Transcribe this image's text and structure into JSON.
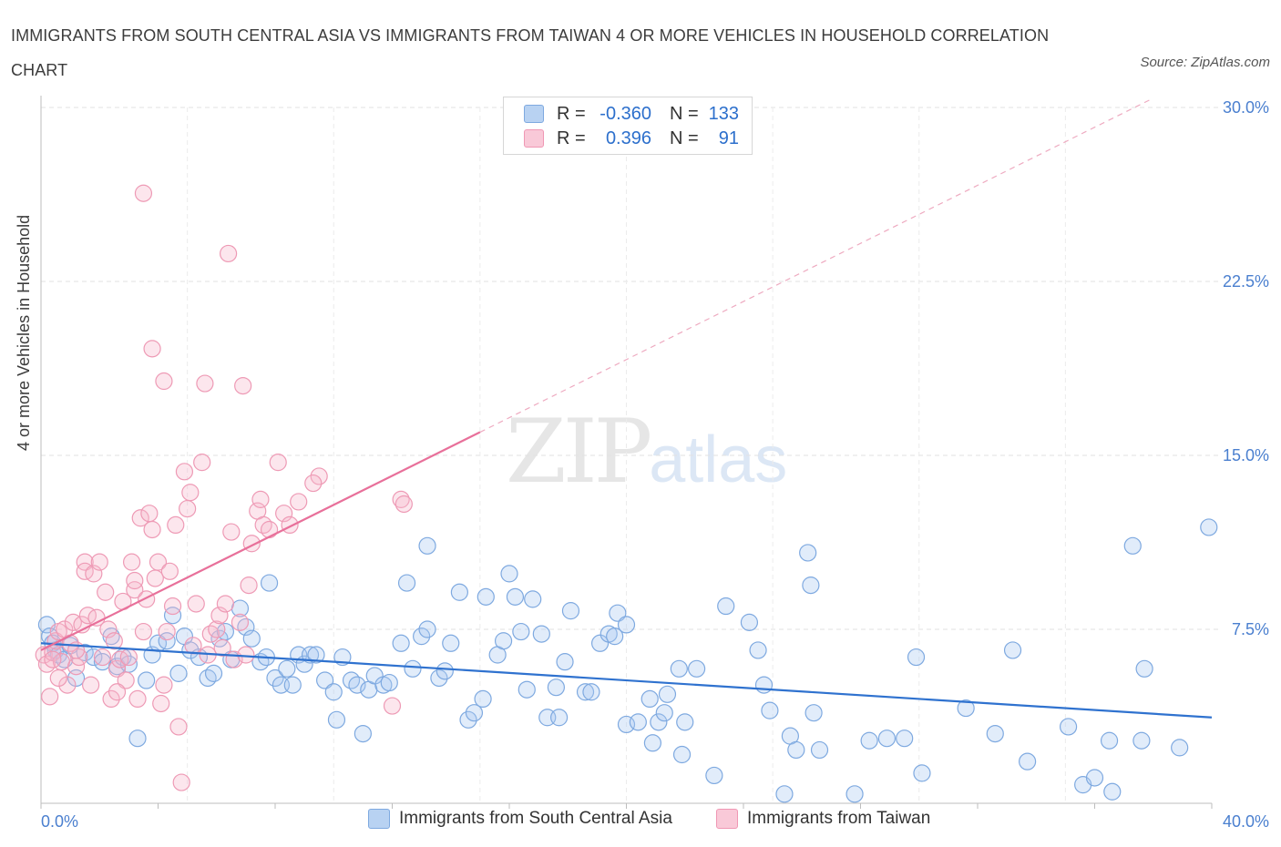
{
  "title": "IMMIGRANTS FROM SOUTH CENTRAL ASIA VS IMMIGRANTS FROM TAIWAN 4 OR MORE VEHICLES IN HOUSEHOLD CORRELATION CHART",
  "source": "Source: ZipAtlas.com",
  "watermark": {
    "zip": "ZIP",
    "atlas": "atlas"
  },
  "legend": {
    "rows": [
      {
        "r_label": "R =",
        "r_value": "-0.360",
        "n_label": "N =",
        "n_value": "133",
        "color": "#a8c8f0"
      },
      {
        "r_label": "R =",
        "r_value": "0.396",
        "n_label": "N =",
        "n_value": "91",
        "color": "#f6b6ca"
      }
    ]
  },
  "chart_data": {
    "type": "scatter",
    "title": "IMMIGRANTS FROM SOUTH CENTRAL ASIA VS IMMIGRANTS FROM TAIWAN 4 OR MORE VEHICLES IN HOUSEHOLD CORRELATION CHART",
    "xlabel": "",
    "ylabel": "4 or more Vehicles in Household",
    "xlim": [
      0,
      40
    ],
    "ylim": [
      0,
      30
    ],
    "x_tick_labels": [
      "0.0%",
      "40.0%"
    ],
    "y_ticks": [
      7.5,
      15.0,
      22.5,
      30.0
    ],
    "y_tick_labels": [
      "7.5%",
      "15.0%",
      "22.5%",
      "30.0%"
    ],
    "grid": true,
    "legend_position": "top-center",
    "series": [
      {
        "name": "Immigrants from South Central Asia",
        "color": "#6aa0e0",
        "trend": {
          "x": [
            0,
            40
          ],
          "y": [
            6.9,
            3.7
          ]
        },
        "points": [
          [
            0.2,
            7.7
          ],
          [
            0.3,
            7.2
          ],
          [
            0.4,
            6.9
          ],
          [
            0.5,
            6.6
          ],
          [
            0.6,
            6.4
          ],
          [
            0.8,
            6.2
          ],
          [
            1.0,
            6.8
          ],
          [
            1.2,
            5.4
          ],
          [
            1.5,
            6.5
          ],
          [
            1.8,
            6.3
          ],
          [
            2.1,
            6.1
          ],
          [
            2.4,
            7.2
          ],
          [
            2.6,
            5.9
          ],
          [
            2.8,
            6.3
          ],
          [
            3.0,
            6.0
          ],
          [
            3.3,
            2.8
          ],
          [
            3.6,
            5.3
          ],
          [
            3.8,
            6.4
          ],
          [
            4.0,
            6.9
          ],
          [
            4.3,
            7.0
          ],
          [
            4.5,
            8.1
          ],
          [
            4.7,
            5.6
          ],
          [
            4.9,
            7.2
          ],
          [
            5.1,
            6.6
          ],
          [
            5.4,
            6.3
          ],
          [
            5.7,
            5.4
          ],
          [
            5.9,
            5.6
          ],
          [
            6.1,
            7.1
          ],
          [
            6.3,
            7.4
          ],
          [
            6.5,
            6.2
          ],
          [
            6.8,
            8.4
          ],
          [
            7.0,
            7.6
          ],
          [
            7.2,
            7.1
          ],
          [
            7.5,
            6.1
          ],
          [
            7.7,
            6.3
          ],
          [
            7.8,
            9.5
          ],
          [
            8.0,
            5.4
          ],
          [
            8.2,
            5.1
          ],
          [
            8.4,
            5.8
          ],
          [
            8.6,
            5.1
          ],
          [
            8.8,
            6.4
          ],
          [
            9.0,
            6.0
          ],
          [
            9.2,
            6.4
          ],
          [
            9.4,
            6.4
          ],
          [
            9.7,
            5.3
          ],
          [
            10.0,
            4.8
          ],
          [
            10.1,
            3.6
          ],
          [
            10.3,
            6.3
          ],
          [
            10.6,
            5.3
          ],
          [
            10.8,
            5.1
          ],
          [
            11.0,
            3.0
          ],
          [
            11.2,
            4.9
          ],
          [
            11.4,
            5.5
          ],
          [
            11.7,
            5.1
          ],
          [
            11.9,
            5.2
          ],
          [
            12.3,
            6.9
          ],
          [
            12.5,
            9.5
          ],
          [
            12.7,
            5.8
          ],
          [
            13.0,
            7.2
          ],
          [
            13.2,
            7.5
          ],
          [
            13.2,
            11.1
          ],
          [
            13.6,
            5.4
          ],
          [
            13.8,
            5.7
          ],
          [
            14.0,
            6.9
          ],
          [
            14.3,
            9.1
          ],
          [
            14.6,
            3.6
          ],
          [
            14.8,
            3.9
          ],
          [
            15.1,
            4.5
          ],
          [
            15.2,
            8.9
          ],
          [
            15.6,
            6.4
          ],
          [
            15.8,
            7.0
          ],
          [
            16.0,
            9.9
          ],
          [
            16.2,
            8.9
          ],
          [
            16.4,
            7.4
          ],
          [
            16.6,
            4.9
          ],
          [
            16.8,
            8.8
          ],
          [
            17.1,
            7.3
          ],
          [
            17.3,
            3.7
          ],
          [
            17.6,
            5.0
          ],
          [
            17.7,
            3.7
          ],
          [
            17.9,
            6.1
          ],
          [
            18.1,
            8.3
          ],
          [
            18.6,
            4.8
          ],
          [
            18.8,
            4.8
          ],
          [
            19.1,
            6.9
          ],
          [
            19.4,
            7.3
          ],
          [
            19.6,
            7.2
          ],
          [
            19.7,
            8.2
          ],
          [
            20.0,
            7.7
          ],
          [
            20.0,
            3.4
          ],
          [
            20.4,
            3.5
          ],
          [
            20.8,
            4.5
          ],
          [
            20.9,
            2.6
          ],
          [
            21.1,
            3.5
          ],
          [
            21.3,
            3.9
          ],
          [
            21.4,
            4.7
          ],
          [
            21.8,
            5.8
          ],
          [
            21.9,
            2.1
          ],
          [
            22.0,
            3.5
          ],
          [
            22.4,
            5.8
          ],
          [
            23.0,
            1.2
          ],
          [
            23.4,
            8.5
          ],
          [
            24.2,
            7.8
          ],
          [
            24.5,
            6.6
          ],
          [
            24.7,
            5.1
          ],
          [
            24.9,
            4.0
          ],
          [
            25.4,
            0.4
          ],
          [
            25.6,
            2.9
          ],
          [
            25.8,
            2.3
          ],
          [
            26.2,
            10.8
          ],
          [
            26.3,
            9.4
          ],
          [
            26.4,
            3.9
          ],
          [
            26.6,
            2.3
          ],
          [
            27.8,
            0.4
          ],
          [
            28.3,
            2.7
          ],
          [
            28.9,
            2.8
          ],
          [
            29.5,
            2.8
          ],
          [
            29.9,
            6.3
          ],
          [
            30.1,
            1.3
          ],
          [
            31.6,
            4.1
          ],
          [
            32.6,
            3.0
          ],
          [
            33.2,
            6.6
          ],
          [
            33.7,
            1.8
          ],
          [
            35.1,
            3.3
          ],
          [
            35.6,
            0.8
          ],
          [
            36.0,
            1.1
          ],
          [
            36.5,
            2.7
          ],
          [
            36.6,
            0.5
          ],
          [
            37.3,
            11.1
          ],
          [
            37.6,
            2.7
          ],
          [
            37.7,
            5.8
          ],
          [
            38.9,
            2.4
          ],
          [
            39.9,
            11.9
          ]
        ]
      },
      {
        "name": "Immigrants from Taiwan",
        "color": "#f08cab",
        "trend": {
          "x": [
            0,
            15
          ],
          "y": [
            6.6,
            16.0
          ]
        },
        "trend_extension": {
          "x": [
            15,
            38
          ],
          "y": [
            16.0,
            30.4
          ]
        },
        "points": [
          [
            0.1,
            6.4
          ],
          [
            0.2,
            6.0
          ],
          [
            0.3,
            4.6
          ],
          [
            0.4,
            6.5
          ],
          [
            0.5,
            7.0
          ],
          [
            0.6,
            7.4
          ],
          [
            0.7,
            6.1
          ],
          [
            0.8,
            7.5
          ],
          [
            0.9,
            5.1
          ],
          [
            1.0,
            6.9
          ],
          [
            1.1,
            7.8
          ],
          [
            1.2,
            5.9
          ],
          [
            1.3,
            6.3
          ],
          [
            1.4,
            7.7
          ],
          [
            1.5,
            10.4
          ],
          [
            1.5,
            10.0
          ],
          [
            1.6,
            8.1
          ],
          [
            1.7,
            5.1
          ],
          [
            1.8,
            9.9
          ],
          [
            1.9,
            8.0
          ],
          [
            2.0,
            10.4
          ],
          [
            2.1,
            6.3
          ],
          [
            2.2,
            9.1
          ],
          [
            2.3,
            7.5
          ],
          [
            2.4,
            4.5
          ],
          [
            2.5,
            7.0
          ],
          [
            2.6,
            5.8
          ],
          [
            2.7,
            6.2
          ],
          [
            2.8,
            8.7
          ],
          [
            2.9,
            5.3
          ],
          [
            3.0,
            6.3
          ],
          [
            3.1,
            10.4
          ],
          [
            3.2,
            9.2
          ],
          [
            3.3,
            4.5
          ],
          [
            3.4,
            12.3
          ],
          [
            3.5,
            7.4
          ],
          [
            3.6,
            8.8
          ],
          [
            3.7,
            12.5
          ],
          [
            3.8,
            11.8
          ],
          [
            3.9,
            9.7
          ],
          [
            4.0,
            10.4
          ],
          [
            4.1,
            4.3
          ],
          [
            4.2,
            5.1
          ],
          [
            4.3,
            7.4
          ],
          [
            4.4,
            10.0
          ],
          [
            4.5,
            8.5
          ],
          [
            4.6,
            12.0
          ],
          [
            4.7,
            3.3
          ],
          [
            4.8,
            0.9
          ],
          [
            4.9,
            14.3
          ],
          [
            5.0,
            12.7
          ],
          [
            5.1,
            13.4
          ],
          [
            5.2,
            6.8
          ],
          [
            5.3,
            8.6
          ],
          [
            5.5,
            14.7
          ],
          [
            5.6,
            18.1
          ],
          [
            5.7,
            6.4
          ],
          [
            5.8,
            7.3
          ],
          [
            6.0,
            7.5
          ],
          [
            6.1,
            8.1
          ],
          [
            6.2,
            6.7
          ],
          [
            6.3,
            8.6
          ],
          [
            6.4,
            23.7
          ],
          [
            6.5,
            11.7
          ],
          [
            6.6,
            6.2
          ],
          [
            6.8,
            7.8
          ],
          [
            6.9,
            18.0
          ],
          [
            7.0,
            6.4
          ],
          [
            7.1,
            9.4
          ],
          [
            7.2,
            11.2
          ],
          [
            7.4,
            12.6
          ],
          [
            7.5,
            13.1
          ],
          [
            7.6,
            12.0
          ],
          [
            7.8,
            11.8
          ],
          [
            8.1,
            14.7
          ],
          [
            8.3,
            12.5
          ],
          [
            8.5,
            12.0
          ],
          [
            8.8,
            13.0
          ],
          [
            9.5,
            14.1
          ],
          [
            9.3,
            13.8
          ],
          [
            3.5,
            26.3
          ],
          [
            3.8,
            19.6
          ],
          [
            4.2,
            18.2
          ],
          [
            12.0,
            4.2
          ],
          [
            12.3,
            13.1
          ],
          [
            12.4,
            12.9
          ],
          [
            0.4,
            6.2
          ],
          [
            0.6,
            5.4
          ],
          [
            1.2,
            6.6
          ],
          [
            2.6,
            4.8
          ],
          [
            3.2,
            9.6
          ]
        ]
      }
    ]
  },
  "bottom_legend": [
    {
      "label": "Immigrants from South Central Asia",
      "color": "#a8c8f0"
    },
    {
      "label": "Immigrants from Taiwan",
      "color": "#f6b6ca"
    }
  ]
}
